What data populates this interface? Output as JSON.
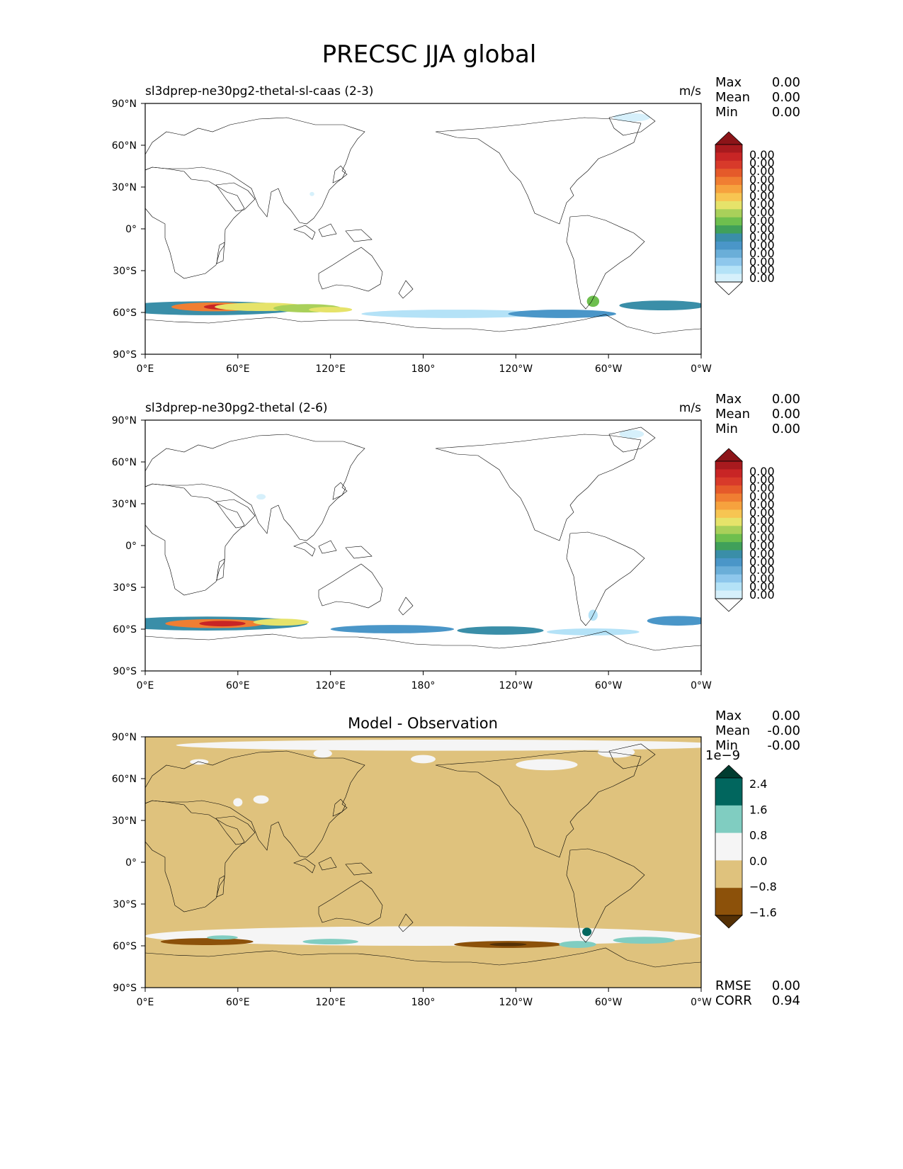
{
  "title": "PRECSC JJA global",
  "colors": {
    "test_levels": [
      "#ffffff",
      "#d6f0fb",
      "#b4e2f7",
      "#8ec7ec",
      "#6aaed8",
      "#4a96c8",
      "#3a8ea8",
      "#40a05a",
      "#6ebf4e",
      "#a9d05a",
      "#e6e36a",
      "#f7c552",
      "#f6a23e",
      "#f07e32",
      "#e55a2a",
      "#d83a2a",
      "#c82525",
      "#a81a1e",
      "#8c1418"
    ],
    "diff_levels": [
      "#543005",
      "#8c510a",
      "#dfc27d",
      "#f5f5f5",
      "#80cdc1",
      "#01665e",
      "#003c30"
    ],
    "coastline": "#000000"
  },
  "axes": {
    "yticks": [
      "90°N",
      "60°N",
      "30°N",
      "0°",
      "30°S",
      "60°S",
      "90°S"
    ],
    "xticks": [
      "0°E",
      "60°E",
      "120°E",
      "180°",
      "120°W",
      "60°W",
      "0°W"
    ]
  },
  "panels": [
    {
      "id": "test",
      "left_title": "sl3dprep-ne30pg2-thetal-sl-caas (2-3)",
      "center_title": "",
      "units": "m/s",
      "stats": [
        {
          "label": "Max",
          "value": "0.00"
        },
        {
          "label": "Mean",
          "value": "0.00"
        },
        {
          "label": "Min",
          "value": "0.00"
        }
      ],
      "colorbar_labels": [
        "0.00",
        "0.00",
        "0.00",
        "0.00",
        "0.00",
        "0.00",
        "0.00",
        "0.00",
        "0.00",
        "0.00",
        "0.00",
        "0.00",
        "0.00",
        "0.00",
        "0.00",
        "0.00"
      ],
      "colorbar_exponent": "",
      "footer_stats": []
    },
    {
      "id": "reference",
      "left_title": "sl3dprep-ne30pg2-thetal (2-6)",
      "center_title": "",
      "units": "m/s",
      "stats": [
        {
          "label": "Max",
          "value": "0.00"
        },
        {
          "label": "Mean",
          "value": "0.00"
        },
        {
          "label": "Min",
          "value": "0.00"
        }
      ],
      "colorbar_labels": [
        "0.00",
        "0.00",
        "0.00",
        "0.00",
        "0.00",
        "0.00",
        "0.00",
        "0.00",
        "0.00",
        "0.00",
        "0.00",
        "0.00",
        "0.00",
        "0.00",
        "0.00",
        "0.00"
      ],
      "colorbar_exponent": "",
      "footer_stats": []
    },
    {
      "id": "difference",
      "left_title": "",
      "center_title": "Model - Observation",
      "units": "",
      "stats": [
        {
          "label": "Max",
          "value": "0.00"
        },
        {
          "label": "Mean",
          "value": "-0.00"
        },
        {
          "label": "Min",
          "value": "-0.00"
        }
      ],
      "colorbar_labels": [
        "2.4",
        "1.6",
        "0.8",
        "0.0",
        "−0.8",
        "−1.6"
      ],
      "colorbar_exponent": "1e−9",
      "footer_stats": [
        {
          "label": "RMSE",
          "value": "0.00"
        },
        {
          "label": "CORR",
          "value": "0.94"
        }
      ]
    }
  ],
  "chart_data": [
    {
      "type": "heatmap",
      "title": "sl3dprep-ne30pg2-thetal-sl-caas (2-3)",
      "units": "m/s",
      "projection": "PlateCarree, central longitude 180",
      "xlim": [
        0,
        360
      ],
      "ylim": [
        -90,
        90
      ],
      "field_blobs": [
        {
          "lon": 40,
          "lat": -57,
          "dlon": 60,
          "dlat": 5,
          "level": 6
        },
        {
          "lon": 45,
          "lat": -56,
          "dlon": 28,
          "dlat": 3.2,
          "level": 13
        },
        {
          "lon": 50,
          "lat": -56,
          "dlon": 12,
          "dlat": 2,
          "level": 16
        },
        {
          "lon": 75,
          "lat": -56,
          "dlon": 30,
          "dlat": 3,
          "level": 10
        },
        {
          "lon": 105,
          "lat": -57,
          "dlon": 22,
          "dlat": 3,
          "level": 9
        },
        {
          "lon": 120,
          "lat": -58,
          "dlon": 14,
          "dlat": 2,
          "level": 10
        },
        {
          "lon": 200,
          "lat": -61,
          "dlon": 60,
          "dlat": 3,
          "level": 2
        },
        {
          "lon": 270,
          "lat": -61,
          "dlon": 35,
          "dlat": 3,
          "level": 5
        },
        {
          "lon": 335,
          "lat": -55,
          "dlon": 28,
          "dlat": 3.5,
          "level": 6
        },
        {
          "lon": 290,
          "lat": -52,
          "dlon": 4,
          "dlat": 4,
          "level": 8
        },
        {
          "lon": 315,
          "lat": 80,
          "dlon": 12,
          "dlat": 3,
          "level": 1
        },
        {
          "lon": 108,
          "lat": 25,
          "dlon": 1.5,
          "dlat": 1.5,
          "level": 1
        }
      ]
    },
    {
      "type": "heatmap",
      "title": "sl3dprep-ne30pg2-thetal (2-6)",
      "units": "m/s",
      "projection": "PlateCarree, central longitude 180",
      "xlim": [
        0,
        360
      ],
      "ylim": [
        -90,
        90
      ],
      "field_blobs": [
        {
          "lon": 40,
          "lat": -56,
          "dlon": 65,
          "dlat": 5,
          "level": 6
        },
        {
          "lon": 45,
          "lat": -56,
          "dlon": 32,
          "dlat": 3.2,
          "level": 13
        },
        {
          "lon": 50,
          "lat": -56,
          "dlon": 15,
          "dlat": 2,
          "level": 16
        },
        {
          "lon": 88,
          "lat": -55,
          "dlon": 18,
          "dlat": 2.5,
          "level": 10
        },
        {
          "lon": 160,
          "lat": -60,
          "dlon": 40,
          "dlat": 3,
          "level": 5
        },
        {
          "lon": 230,
          "lat": -61,
          "dlon": 28,
          "dlat": 3,
          "level": 6
        },
        {
          "lon": 290,
          "lat": -62,
          "dlon": 30,
          "dlat": 2.5,
          "level": 2
        },
        {
          "lon": 345,
          "lat": -54,
          "dlon": 20,
          "dlat": 3.5,
          "level": 5
        },
        {
          "lon": 290,
          "lat": -50,
          "dlon": 3,
          "dlat": 4,
          "level": 2
        },
        {
          "lon": 315,
          "lat": 80,
          "dlon": 8,
          "dlat": 3,
          "level": 1
        },
        {
          "lon": 75,
          "lat": 35,
          "dlon": 3,
          "dlat": 2,
          "level": 1
        }
      ]
    },
    {
      "type": "heatmap",
      "title": "Model - Observation",
      "projection": "PlateCarree, central longitude 180",
      "xlim": [
        0,
        360
      ],
      "ylim": [
        -90,
        90
      ],
      "colorbar_scale": "1e-9",
      "colorbar_ticks": [
        2.4,
        1.6,
        0.8,
        0.0,
        -0.8,
        -1.6
      ],
      "background_value_range": [
        -0.8,
        0.0
      ],
      "field_blobs": [
        {
          "lon": 200,
          "lat": 84,
          "dlon": 180,
          "dlat": 4,
          "level": 3
        },
        {
          "lon": 35,
          "lat": 72,
          "dlon": 6,
          "dlat": 2,
          "level": 3
        },
        {
          "lon": 115,
          "lat": 78,
          "dlon": 6,
          "dlat": 3,
          "level": 3
        },
        {
          "lon": 180,
          "lat": 74,
          "dlon": 8,
          "dlat": 3,
          "level": 3
        },
        {
          "lon": 260,
          "lat": 70,
          "dlon": 20,
          "dlat": 4,
          "level": 3
        },
        {
          "lon": 305,
          "lat": 79,
          "dlon": 12,
          "dlat": 4,
          "level": 3
        },
        {
          "lon": 60,
          "lat": 43,
          "dlon": 3,
          "dlat": 3,
          "level": 3
        },
        {
          "lon": 75,
          "lat": 45,
          "dlon": 5,
          "dlat": 3,
          "level": 3
        },
        {
          "lon": 180,
          "lat": -53,
          "dlon": 180,
          "dlat": 7,
          "level": 3
        },
        {
          "lon": 40,
          "lat": -57,
          "dlon": 30,
          "dlat": 2.5,
          "level": 1
        },
        {
          "lon": 235,
          "lat": -59,
          "dlon": 35,
          "dlat": 2.5,
          "level": 1
        },
        {
          "lon": 235,
          "lat": -59,
          "dlon": 12,
          "dlat": 1.2,
          "level": 0
        },
        {
          "lon": 50,
          "lat": -54,
          "dlon": 10,
          "dlat": 1.5,
          "level": 4
        },
        {
          "lon": 120,
          "lat": -57,
          "dlon": 18,
          "dlat": 2,
          "level": 4
        },
        {
          "lon": 280,
          "lat": -59,
          "dlon": 12,
          "dlat": 2.5,
          "level": 4
        },
        {
          "lon": 323,
          "lat": -56,
          "dlon": 20,
          "dlat": 2.5,
          "level": 4
        },
        {
          "lon": 286,
          "lat": -50,
          "dlon": 3,
          "dlat": 3,
          "level": 5
        }
      ]
    }
  ]
}
